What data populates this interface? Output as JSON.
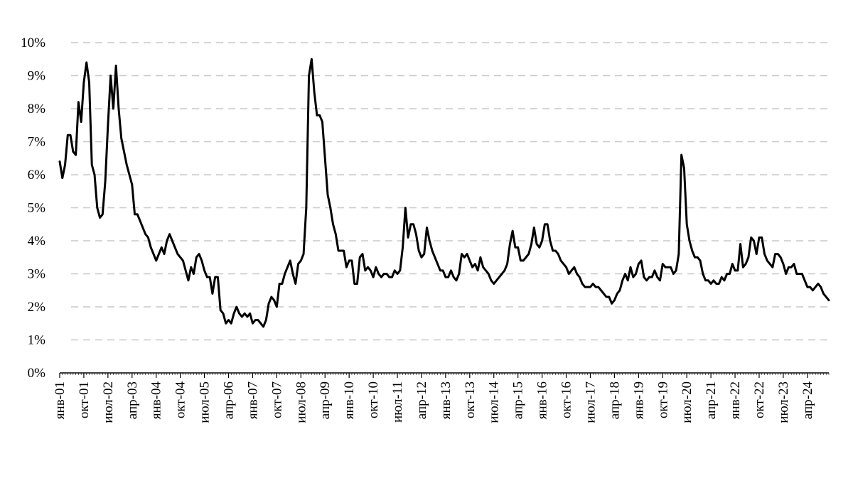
{
  "chart_data": {
    "type": "line",
    "title": "",
    "xlabel": "",
    "ylabel": "",
    "ylim": [
      0,
      10
    ],
    "y_ticks": [
      "0%",
      "1%",
      "2%",
      "3%",
      "4%",
      "5%",
      "6%",
      "7%",
      "8%",
      "9%",
      "10%"
    ],
    "x_tick_labels": [
      "янв-01",
      "окт-01",
      "июл-02",
      "апр-03",
      "янв-04",
      "окт-04",
      "июл-05",
      "апр-06",
      "янв-07",
      "окт-07",
      "июл-08",
      "апр-09",
      "янв-10",
      "окт-10",
      "июл-11",
      "апр-12",
      "янв-13",
      "окт-13",
      "июл-14",
      "апр-15",
      "янв-16",
      "окт-16",
      "июл-17",
      "апр-18",
      "янв-19",
      "окт-19",
      "июл-20",
      "апр-21",
      "янв-22",
      "окт-22",
      "июл-23",
      "апр-24"
    ],
    "x_start": "2001-01",
    "x_end": "2024-12",
    "grid": "horizontal dashed",
    "legend": "none",
    "line_color": "#000000",
    "grid_color": "#c8c8c8",
    "series": [
      {
        "values": [
          6.4,
          5.9,
          6.3,
          7.2,
          7.2,
          6.7,
          6.6,
          8.2,
          7.6,
          8.8,
          9.4,
          8.8,
          6.3,
          6.0,
          5.0,
          4.7,
          4.8,
          5.8,
          7.5,
          9.0,
          8.0,
          9.3,
          8.0,
          7.1,
          6.7,
          6.3,
          6.0,
          5.7,
          4.8,
          4.8,
          4.6,
          4.4,
          4.2,
          4.1,
          3.8,
          3.6,
          3.4,
          3.6,
          3.8,
          3.6,
          4.0,
          4.2,
          4.0,
          3.8,
          3.6,
          3.5,
          3.4,
          3.1,
          2.8,
          3.2,
          3.0,
          3.5,
          3.6,
          3.4,
          3.1,
          2.9,
          2.9,
          2.4,
          2.9,
          2.9,
          1.9,
          1.8,
          1.5,
          1.6,
          1.5,
          1.8,
          2.0,
          1.8,
          1.7,
          1.8,
          1.7,
          1.8,
          1.5,
          1.6,
          1.6,
          1.5,
          1.4,
          1.6,
          2.1,
          2.3,
          2.2,
          2.0,
          2.7,
          2.7,
          3.0,
          3.2,
          3.4,
          3.0,
          2.7,
          3.3,
          3.4,
          3.6,
          5.0,
          9.0,
          9.5,
          8.5,
          7.8,
          7.8,
          7.6,
          6.5,
          5.4,
          5.0,
          4.5,
          4.2,
          3.7,
          3.7,
          3.7,
          3.2,
          3.4,
          3.4,
          2.7,
          2.7,
          3.5,
          3.6,
          3.1,
          3.2,
          3.1,
          2.9,
          3.2,
          3.0,
          2.9,
          3.0,
          3.0,
          2.9,
          2.9,
          3.1,
          3.0,
          3.1,
          3.8,
          5.0,
          4.1,
          4.5,
          4.5,
          4.2,
          3.7,
          3.5,
          3.6,
          4.4,
          4.0,
          3.7,
          3.5,
          3.3,
          3.1,
          3.1,
          2.9,
          2.9,
          3.1,
          2.9,
          2.8,
          3.0,
          3.6,
          3.5,
          3.6,
          3.4,
          3.2,
          3.3,
          3.1,
          3.5,
          3.2,
          3.1,
          3.0,
          2.8,
          2.7,
          2.8,
          2.9,
          3.0,
          3.1,
          3.3,
          3.9,
          4.3,
          3.8,
          3.8,
          3.4,
          3.4,
          3.5,
          3.6,
          3.9,
          4.4,
          3.9,
          3.8,
          4.0,
          4.5,
          4.5,
          4.0,
          3.7,
          3.7,
          3.6,
          3.4,
          3.3,
          3.2,
          3.0,
          3.1,
          3.2,
          3.0,
          2.9,
          2.7,
          2.6,
          2.6,
          2.6,
          2.7,
          2.6,
          2.6,
          2.5,
          2.4,
          2.3,
          2.3,
          2.1,
          2.2,
          2.4,
          2.5,
          2.8,
          3.0,
          2.8,
          3.2,
          2.9,
          3.0,
          3.3,
          3.4,
          2.9,
          2.8,
          2.9,
          2.9,
          3.1,
          2.9,
          2.8,
          3.3,
          3.2,
          3.2,
          3.2,
          3.0,
          3.1,
          3.6,
          6.6,
          6.2,
          4.5,
          4.0,
          3.7,
          3.5,
          3.5,
          3.4,
          3.0,
          2.8,
          2.8,
          2.7,
          2.8,
          2.7,
          2.7,
          2.9,
          2.8,
          3.0,
          3.0,
          3.3,
          3.1,
          3.1,
          3.9,
          3.2,
          3.3,
          3.5,
          4.1,
          4.0,
          3.6,
          4.1,
          4.1,
          3.6,
          3.4,
          3.3,
          3.2,
          3.6,
          3.6,
          3.5,
          3.3,
          3.0,
          3.2,
          3.2,
          3.3,
          3.0,
          3.0,
          3.0,
          2.8,
          2.6,
          2.6,
          2.5,
          2.6,
          2.7,
          2.6,
          2.4,
          2.3,
          2.2
        ]
      }
    ]
  }
}
